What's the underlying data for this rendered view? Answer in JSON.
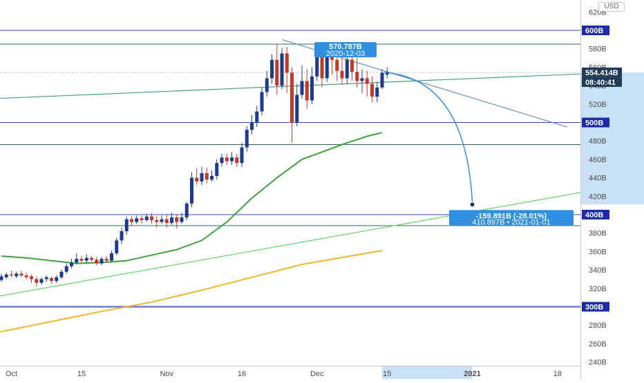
{
  "currency_button": "USD",
  "chart_data": {
    "type": "candlestick",
    "y_axis": {
      "ticks": [
        "620B",
        "600B",
        "580B",
        "560B",
        "540B",
        "520B",
        "500B",
        "480B",
        "460B",
        "440B",
        "420B",
        "400B",
        "380B",
        "360B",
        "340B",
        "320B",
        "300B",
        "280B",
        "260B",
        "240B"
      ],
      "ylim": [
        234,
        627
      ]
    },
    "x_axis": {
      "ticks": [
        {
          "label": "Oct",
          "idx": 2
        },
        {
          "label": "15",
          "idx": 16
        },
        {
          "label": "Nov",
          "idx": 33
        },
        {
          "label": "16",
          "idx": 48
        },
        {
          "label": "Dec",
          "idx": 63
        },
        {
          "label": "15",
          "idx": 77
        },
        {
          "label": "2021",
          "idx": 94
        },
        {
          "label": "18",
          "idx": 111
        }
      ]
    },
    "price_tags": [
      {
        "label": "600B",
        "value": 600,
        "color": "#1d2ba8"
      },
      {
        "label": "554.414B",
        "value": 554.4,
        "color": "#1f3b57"
      },
      {
        "label": "500B",
        "value": 500,
        "color": "#1d2ba8"
      },
      {
        "label": "400B",
        "value": 400,
        "color": "#1d2ba8"
      },
      {
        "label": "300B",
        "value": 300,
        "color": "#1d2ba8"
      }
    ],
    "countdown": "08:40:41",
    "last_price": 554.4,
    "horizontal_lines": [
      {
        "value": 600,
        "color": "#3b4ab8"
      },
      {
        "value": 585,
        "color": "#2e6b6b"
      },
      {
        "value": 500,
        "color": "#3b4ab8"
      },
      {
        "value": 476,
        "color": "#2e6b6b"
      },
      {
        "value": 400,
        "color": "#3b4ab8"
      },
      {
        "value": 388,
        "color": "#2e6b6b"
      },
      {
        "value": 300,
        "color": "#6a7fd8"
      }
    ],
    "pattern_label": "570.787B",
    "pattern_date": "2020-12-03",
    "projection": {
      "change": "-159.891B (-28.01%)",
      "target": "410.897B",
      "date": "2021-01-01",
      "target_value": 411
    },
    "up_color": "#1e3a8a",
    "down_color": "#c0392b",
    "candles": [
      [
        329,
        333,
        327,
        336
      ],
      [
        332,
        335,
        330,
        337
      ],
      [
        335,
        334,
        332,
        339
      ],
      [
        333,
        336,
        331,
        338
      ],
      [
        336,
        334,
        332,
        339
      ],
      [
        334,
        332,
        330,
        337
      ],
      [
        333,
        330,
        326,
        335
      ],
      [
        330,
        326,
        322,
        333
      ],
      [
        326,
        330,
        324,
        332
      ],
      [
        330,
        332,
        327,
        334
      ],
      [
        331,
        328,
        325,
        333
      ],
      [
        328,
        332,
        326,
        334
      ],
      [
        332,
        338,
        330,
        340
      ],
      [
        338,
        344,
        336,
        347
      ],
      [
        344,
        348,
        342,
        352
      ],
      [
        348,
        352,
        346,
        358
      ],
      [
        352,
        350,
        348,
        355
      ],
      [
        350,
        353,
        347,
        357
      ],
      [
        353,
        351,
        349,
        355
      ],
      [
        351,
        347,
        345,
        354
      ],
      [
        347,
        352,
        345,
        354
      ],
      [
        352,
        350,
        348,
        355
      ],
      [
        350,
        358,
        348,
        361
      ],
      [
        358,
        372,
        356,
        375
      ],
      [
        372,
        382,
        368,
        386
      ],
      [
        382,
        395,
        378,
        398
      ],
      [
        395,
        392,
        388,
        398
      ],
      [
        392,
        396,
        390,
        399
      ],
      [
        396,
        394,
        390,
        399
      ],
      [
        394,
        398,
        392,
        401
      ],
      [
        398,
        394,
        390,
        402
      ],
      [
        394,
        392,
        386,
        398
      ],
      [
        392,
        395,
        390,
        399
      ],
      [
        395,
        391,
        386,
        400
      ],
      [
        391,
        397,
        389,
        402
      ],
      [
        397,
        392,
        385,
        400
      ],
      [
        392,
        397,
        390,
        402
      ],
      [
        397,
        412,
        394,
        414
      ],
      [
        412,
        440,
        408,
        446
      ],
      [
        440,
        436,
        432,
        450
      ],
      [
        436,
        445,
        432,
        452
      ],
      [
        445,
        438,
        434,
        451
      ],
      [
        438,
        442,
        436,
        448
      ],
      [
        442,
        456,
        438,
        460
      ],
      [
        456,
        462,
        452,
        466
      ],
      [
        462,
        458,
        454,
        466
      ],
      [
        458,
        462,
        454,
        468
      ],
      [
        462,
        456,
        452,
        466
      ],
      [
        456,
        473,
        452,
        478
      ],
      [
        473,
        492,
        468,
        496
      ],
      [
        492,
        500,
        487,
        508
      ],
      [
        500,
        512,
        495,
        518
      ],
      [
        512,
        533,
        508,
        538
      ],
      [
        533,
        548,
        528,
        556
      ],
      [
        548,
        568,
        542,
        574
      ],
      [
        568,
        540,
        530,
        585
      ],
      [
        540,
        575,
        536,
        581
      ],
      [
        575,
        554,
        532,
        582
      ],
      [
        554,
        500,
        478,
        560
      ],
      [
        500,
        530,
        496,
        542
      ],
      [
        530,
        545,
        526,
        562
      ],
      [
        545,
        524,
        515,
        558
      ],
      [
        524,
        550,
        520,
        560
      ],
      [
        550,
        573,
        545,
        580
      ],
      [
        573,
        548,
        538,
        580
      ],
      [
        548,
        575,
        544,
        582
      ],
      [
        575,
        568,
        552,
        578
      ],
      [
        568,
        556,
        545,
        574
      ],
      [
        556,
        548,
        541,
        570
      ],
      [
        548,
        568,
        542,
        574
      ],
      [
        568,
        555,
        545,
        572
      ],
      [
        555,
        545,
        538,
        570
      ],
      [
        545,
        548,
        532,
        558
      ],
      [
        548,
        542,
        528,
        556
      ],
      [
        542,
        528,
        522,
        550
      ],
      [
        528,
        538,
        522,
        544
      ],
      [
        538,
        554,
        536,
        558
      ],
      [
        552,
        555,
        548,
        560
      ]
    ],
    "ma_green": [
      [
        0,
        355
      ],
      [
        5,
        353
      ],
      [
        10,
        350
      ],
      [
        15,
        347
      ],
      [
        20,
        348
      ],
      [
        25,
        350
      ],
      [
        30,
        356
      ],
      [
        35,
        362
      ],
      [
        40,
        372
      ],
      [
        45,
        392
      ],
      [
        50,
        418
      ],
      [
        55,
        440
      ],
      [
        60,
        460
      ],
      [
        63,
        466
      ],
      [
        68,
        476
      ],
      [
        73,
        485
      ],
      [
        76,
        489
      ]
    ],
    "ma_orange": [
      [
        -1,
        272
      ],
      [
        10,
        284
      ],
      [
        20,
        295
      ],
      [
        30,
        305
      ],
      [
        40,
        318
      ],
      [
        50,
        332
      ],
      [
        60,
        346
      ],
      [
        76,
        361
      ]
    ],
    "trend_lines": [
      {
        "from": [
          -1,
          526
        ],
        "to": [
          130,
          556
        ],
        "color": "#43a37a"
      },
      {
        "from": [
          -1,
          311
        ],
        "to": [
          130,
          438
        ],
        "color": "#5fd65f"
      },
      {
        "from": [
          56,
          590
        ],
        "to": [
          113,
          495
        ],
        "color": "#6b8fb8"
      }
    ]
  }
}
